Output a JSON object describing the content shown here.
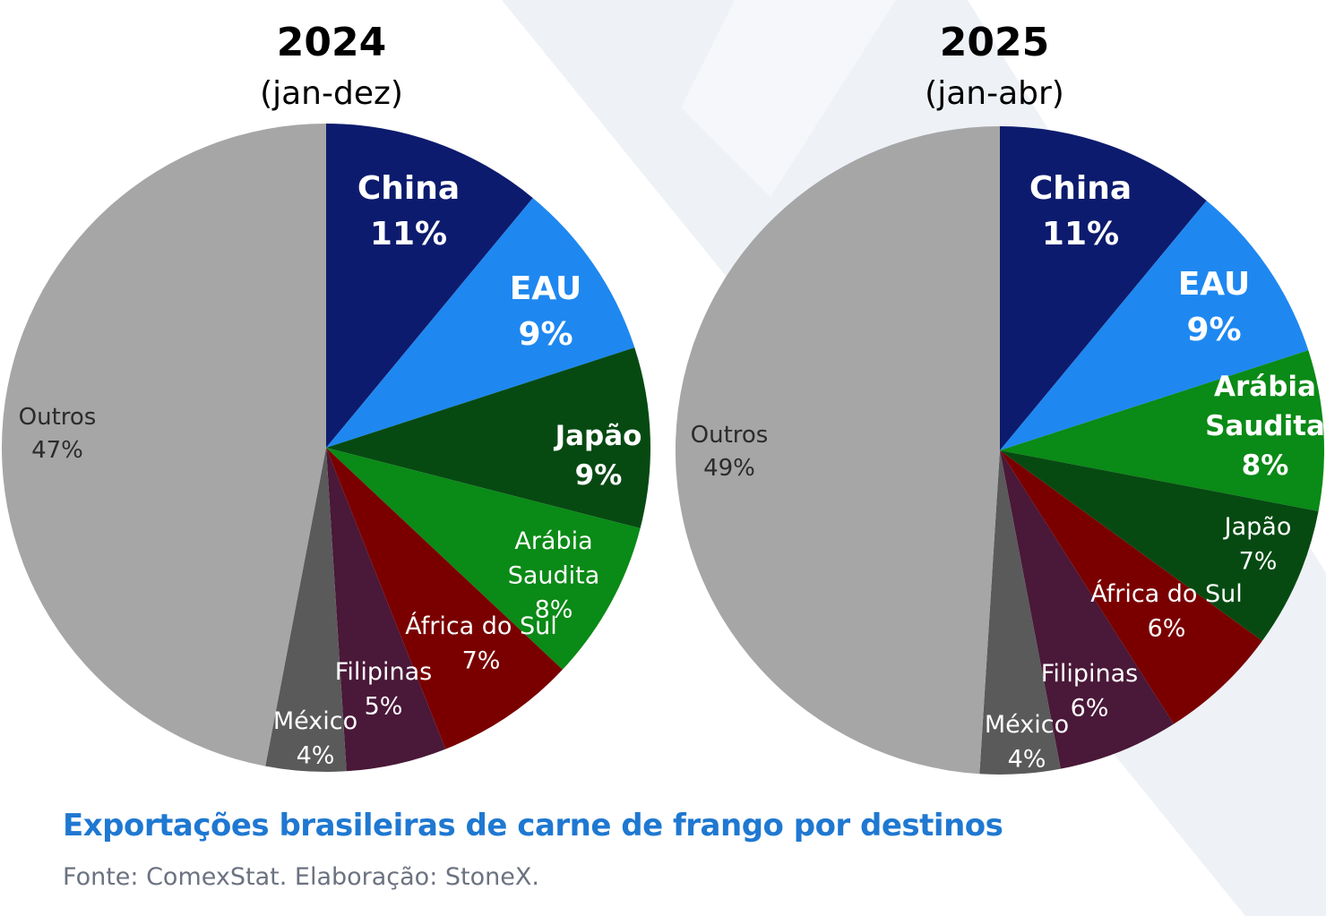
{
  "colors": {
    "China": "#0d1b6e",
    "EAU": "#1e88f0",
    "Japão": "#064a12",
    "Arábia Saudita": "#0a8a16",
    "África do Sul": "#7a0000",
    "Filipinas": "#4a1838",
    "México": "#5a5a5a",
    "Outros": "#a6a6a6"
  },
  "chart_data": [
    {
      "type": "pie",
      "title": "2024",
      "subtitle": "(jan-dez)",
      "slices": [
        {
          "label": "China",
          "value": 11,
          "display": "11%"
        },
        {
          "label": "EAU",
          "value": 9,
          "display": "9%"
        },
        {
          "label": "Japão",
          "value": 9,
          "display": "9%"
        },
        {
          "label": "Arábia Saudita",
          "value": 8,
          "display": "8%"
        },
        {
          "label": "África do Sul",
          "value": 7,
          "display": "7%"
        },
        {
          "label": "Filipinas",
          "value": 5,
          "display": "5%"
        },
        {
          "label": "México",
          "value": 4,
          "display": "4%"
        },
        {
          "label": "Outros",
          "value": 47,
          "display": "47%"
        }
      ]
    },
    {
      "type": "pie",
      "title": "2025",
      "subtitle": "(jan-abr)",
      "slices": [
        {
          "label": "China",
          "value": 11,
          "display": "11%"
        },
        {
          "label": "EAU",
          "value": 9,
          "display": "9%"
        },
        {
          "label": "Arábia Saudita",
          "value": 8,
          "display": "8%"
        },
        {
          "label": "Japão",
          "value": 7,
          "display": "7%"
        },
        {
          "label": "África do Sul",
          "value": 6,
          "display": "6%"
        },
        {
          "label": "Filipinas",
          "value": 6,
          "display": "6%"
        },
        {
          "label": "México",
          "value": 4,
          "display": "4%"
        },
        {
          "label": "Outros",
          "value": 49,
          "display": "49%"
        }
      ]
    }
  ],
  "footer": {
    "title": "Exportações brasileiras de carne de frango por destinos",
    "source": "Fonte: ComexStat. Elaboração: StoneX."
  }
}
